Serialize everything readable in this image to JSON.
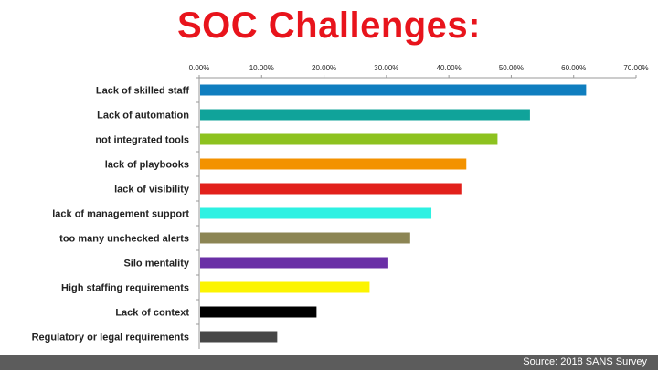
{
  "chart_data": {
    "type": "bar",
    "orientation": "horizontal",
    "title": "SOC Challenges:",
    "categories": [
      "Lack of skilled staff",
      "Lack of automation",
      "not integrated tools",
      "lack of playbooks",
      "lack of visibility",
      "lack of management support",
      "too many unchecked alerts",
      "Silo mentality",
      "High staffing requirements",
      "Lack of context",
      "Regulatory or legal requirements"
    ],
    "values": [
      0.62,
      0.53,
      0.478,
      0.428,
      0.42,
      0.372,
      0.338,
      0.303,
      0.273,
      0.188,
      0.125
    ],
    "colors": [
      "#0f7ebf",
      "#10a39a",
      "#8dc21f",
      "#f39200",
      "#e2201b",
      "#2ef1e2",
      "#8c8554",
      "#6a2fa6",
      "#fcf400",
      "#000000",
      "#474747"
    ],
    "xlim": [
      0,
      0.7
    ],
    "xticks": [
      "0.00%",
      "10.00%",
      "20.00%",
      "30.00%",
      "40.00%",
      "50.00%",
      "60.00%",
      "70.00%"
    ],
    "grid": false,
    "legend": "none",
    "source": "Source: 2018 SANS Survey"
  }
}
